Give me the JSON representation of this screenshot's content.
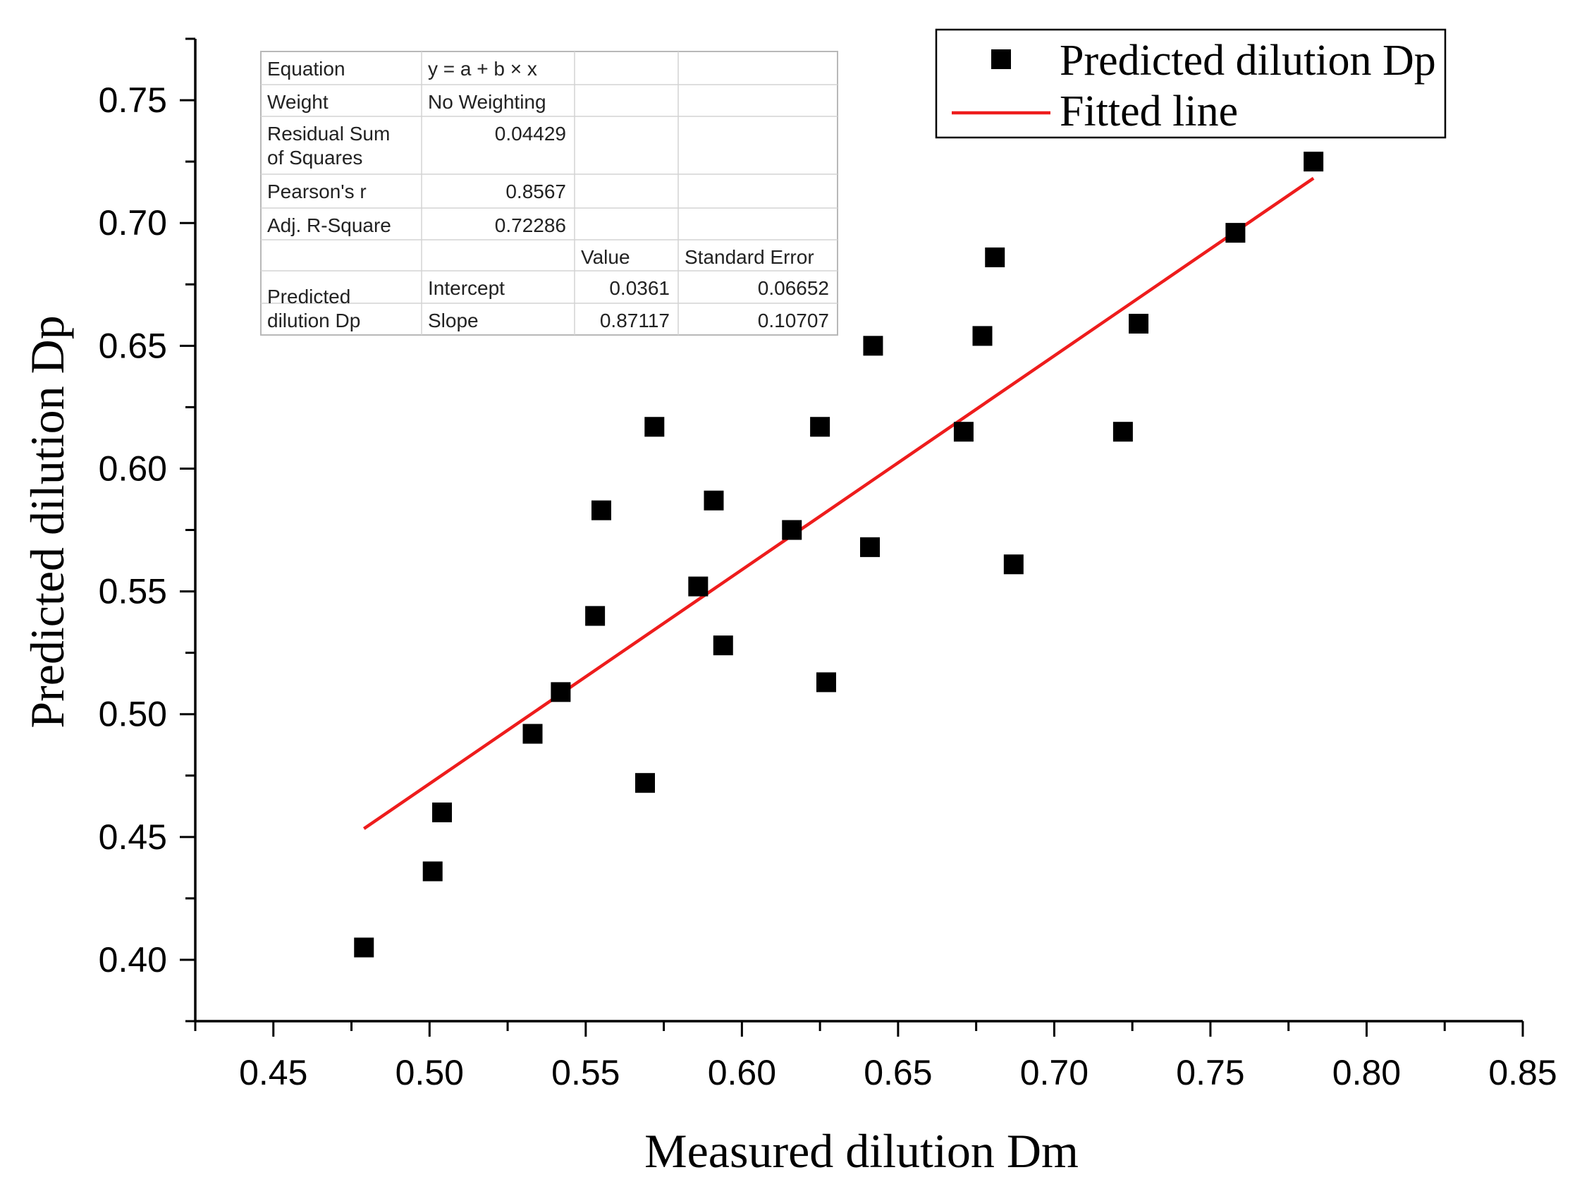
{
  "chart_data": {
    "type": "scatter",
    "xlabel": "Measured dilution Dm",
    "ylabel": "Predicted dilution Dp",
    "xlim": [
      0.425,
      0.85
    ],
    "ylim": [
      0.375,
      0.775
    ],
    "x_ticks": [
      "0.45",
      "0.50",
      "0.55",
      "0.60",
      "0.65",
      "0.70",
      "0.75",
      "0.80",
      "0.85"
    ],
    "y_ticks": [
      "0.40",
      "0.45",
      "0.50",
      "0.55",
      "0.60",
      "0.65",
      "0.70",
      "0.75"
    ],
    "series": [
      {
        "name": "Predicted dilution Dp",
        "kind": "scatter",
        "marker": "square",
        "color": "#000000",
        "points": [
          [
            0.479,
            0.405
          ],
          [
            0.501,
            0.436
          ],
          [
            0.504,
            0.46
          ],
          [
            0.533,
            0.492
          ],
          [
            0.542,
            0.509
          ],
          [
            0.553,
            0.54
          ],
          [
            0.555,
            0.583
          ],
          [
            0.569,
            0.472
          ],
          [
            0.572,
            0.617
          ],
          [
            0.586,
            0.552
          ],
          [
            0.591,
            0.587
          ],
          [
            0.594,
            0.528
          ],
          [
            0.616,
            0.575
          ],
          [
            0.625,
            0.617
          ],
          [
            0.627,
            0.513
          ],
          [
            0.641,
            0.568
          ],
          [
            0.642,
            0.65
          ],
          [
            0.671,
            0.615
          ],
          [
            0.677,
            0.654
          ],
          [
            0.681,
            0.686
          ],
          [
            0.687,
            0.561
          ],
          [
            0.722,
            0.615
          ],
          [
            0.727,
            0.659
          ],
          [
            0.758,
            0.696
          ],
          [
            0.783,
            0.725
          ]
        ]
      },
      {
        "name": "Fitted line",
        "kind": "line",
        "color": "#ee1c1c",
        "intercept": 0.0361,
        "slope": 0.87117,
        "x_range": [
          0.479,
          0.783
        ]
      }
    ],
    "legend": {
      "position": "top-right",
      "entries": [
        "Predicted dilution Dp",
        "Fitted line"
      ]
    },
    "stats_table": {
      "rows": [
        [
          "Equation",
          "y = a + b × x",
          "",
          ""
        ],
        [
          "Weight",
          "No Weighting",
          "",
          ""
        ],
        [
          "Residual Sum\nof Squares",
          "0.04429",
          "",
          ""
        ],
        [
          "Pearson's r",
          "0.8567",
          "",
          ""
        ],
        [
          "Adj. R-Square",
          "0.72286",
          "",
          ""
        ],
        [
          "",
          "",
          "Value",
          "Standard Error"
        ],
        [
          "Predicted\ndilution Dp",
          "Intercept",
          "0.0361",
          "0.06652"
        ],
        [
          "",
          "Slope",
          "0.87117",
          "0.10707"
        ]
      ]
    }
  }
}
